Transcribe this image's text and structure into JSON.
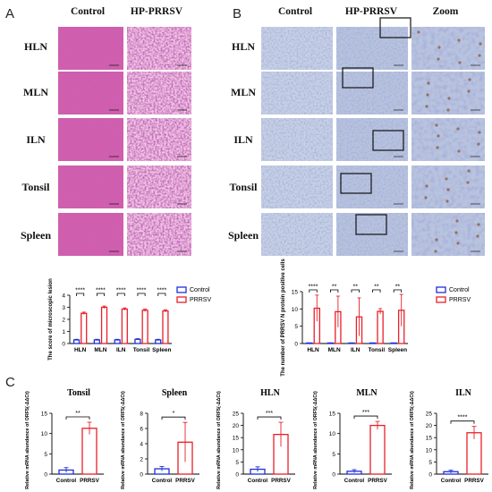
{
  "panels": {
    "A": {
      "label": "A",
      "columns": [
        "Control",
        "HP-PRRSV"
      ],
      "rows": [
        "HLN",
        "MLN",
        "ILN",
        "Tonsil",
        "Spleen"
      ],
      "stain_colors": {
        "base": "#d75aa8",
        "dark": "#8c2a7d",
        "light": "#f3c6e2"
      }
    },
    "B": {
      "label": "B",
      "columns": [
        "Control",
        "HP-PRRSV",
        "Zoom"
      ],
      "rows": [
        "HLN",
        "MLN",
        "ILN",
        "Tonsil",
        "Spleen"
      ],
      "stain_colors": {
        "base": "#b9c4de",
        "dark": "#5f6fa8",
        "brown": "#8a5a3a"
      }
    },
    "C": {
      "label": "C"
    }
  },
  "chart_data": [
    {
      "type": "bar",
      "categories": [
        "HLN",
        "MLN",
        "ILN",
        "Tonsil",
        "Spleen"
      ],
      "ylabel": "The score of microscopic lesion",
      "ylim": [
        0,
        4
      ],
      "yticks": [
        "0",
        "1",
        "2",
        "3",
        "4"
      ],
      "legend_position": "right",
      "series": [
        {
          "name": "Control",
          "values": [
            0.3,
            0.3,
            0.3,
            0.35,
            0.3
          ],
          "errors": [
            0.05,
            0.05,
            0.05,
            0.05,
            0.05
          ],
          "color": "#1f2fd6"
        },
        {
          "name": "PRRSV",
          "values": [
            2.5,
            3.0,
            2.85,
            2.75,
            2.7
          ],
          "errors": [
            0.1,
            0.1,
            0.1,
            0.1,
            0.1
          ],
          "color": "#e8202a"
        }
      ],
      "significance": [
        "****",
        "****",
        "****",
        "****",
        "****"
      ]
    },
    {
      "type": "bar",
      "categories": [
        "HLN",
        "MLN",
        "ILN",
        "Tonsil",
        "Spleen"
      ],
      "ylabel": "The number of PRRSV N protein positive cells",
      "ylim": [
        0,
        15
      ],
      "yticks": [
        "0",
        "5",
        "10",
        "15"
      ],
      "legend_position": "right",
      "series": [
        {
          "name": "Control",
          "values": [
            0,
            0,
            0,
            0,
            0
          ],
          "errors": [
            0,
            0,
            0,
            0,
            0
          ],
          "color": "#1f2fd6"
        },
        {
          "name": "PRRSV",
          "values": [
            10.2,
            9.2,
            7.7,
            9.3,
            9.6
          ],
          "errors": [
            3.8,
            4.5,
            5.5,
            0.8,
            4.6
          ],
          "color": "#e8202a"
        }
      ],
      "significance": [
        "****",
        "**",
        "**",
        "**",
        "**"
      ]
    },
    {
      "type": "bar",
      "title": "Tonsil",
      "categories": [
        "Control",
        "PRRSV"
      ],
      "ylabel": "Relative mRNA abundance of ORF5(-ΔΔCt)",
      "ylim": [
        0,
        15
      ],
      "yticks": [
        "0",
        "5",
        "10",
        "15"
      ],
      "values": [
        1.0,
        11.3
      ],
      "errors": [
        0.6,
        1.5
      ],
      "colors": [
        "#1f2fd6",
        "#e8202a"
      ],
      "significance": "**"
    },
    {
      "type": "bar",
      "title": "Spleen",
      "categories": [
        "Control",
        "PRRSV"
      ],
      "ylabel": "Relative mRNA abundance of ORF5(-ΔΔCt)",
      "ylim": [
        0,
        8
      ],
      "yticks": [
        "0",
        "2",
        "4",
        "6",
        "8"
      ],
      "values": [
        0.7,
        4.2
      ],
      "errors": [
        0.3,
        2.6
      ],
      "colors": [
        "#1f2fd6",
        "#e8202a"
      ],
      "significance": "*"
    },
    {
      "type": "bar",
      "title": "HLN",
      "categories": [
        "Control",
        "PRRSV"
      ],
      "ylabel": "Relative mRNA abundance of ORF5(-ΔΔCt)",
      "ylim": [
        0,
        25
      ],
      "yticks": [
        "0",
        "5",
        "10",
        "15",
        "20",
        "25"
      ],
      "values": [
        2.0,
        16.3
      ],
      "errors": [
        1.0,
        5.0
      ],
      "colors": [
        "#1f2fd6",
        "#e8202a"
      ],
      "significance": "***"
    },
    {
      "type": "bar",
      "title": "MLN",
      "categories": [
        "Control",
        "PRRSV"
      ],
      "ylabel": "Relative mRNA abundance of ORF5(-ΔΔCt)",
      "ylim": [
        0,
        15
      ],
      "yticks": [
        "0",
        "5",
        "10",
        "15"
      ],
      "values": [
        0.7,
        12.0
      ],
      "errors": [
        0.4,
        1.0
      ],
      "colors": [
        "#1f2fd6",
        "#e8202a"
      ],
      "significance": "***"
    },
    {
      "type": "bar",
      "title": "ILN",
      "categories": [
        "Control",
        "PRRSV"
      ],
      "ylabel": "Relative mRNA abundance of ORF5(-ΔΔCt)",
      "ylim": [
        0,
        25
      ],
      "yticks": [
        "0",
        "5",
        "10",
        "15",
        "20",
        "25"
      ],
      "values": [
        1.0,
        17.0
      ],
      "errors": [
        0.6,
        2.6
      ],
      "colors": [
        "#1f2fd6",
        "#e8202a"
      ],
      "significance": "****"
    }
  ]
}
